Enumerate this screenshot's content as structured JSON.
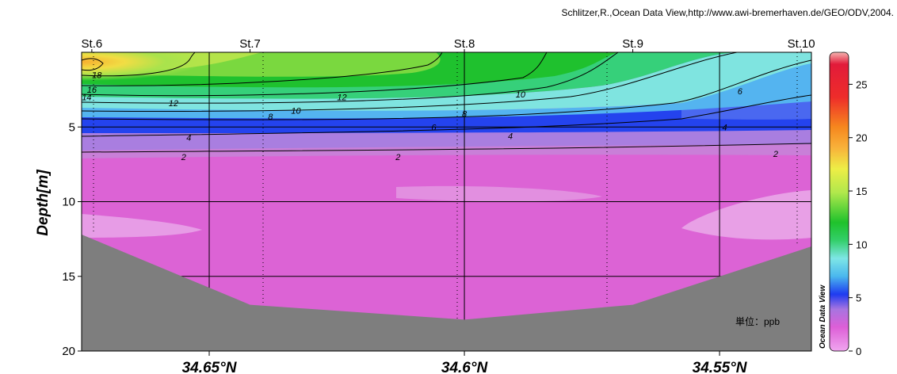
{
  "credit": "Schlitzer,R.,Ocean Data View,http://www.awi-bremerhaven.de/GEO/ODV,2004.",
  "unit_note": "単位：ppb",
  "colorbar_title": "Ocean Data View",
  "chart_data": {
    "type": "heatmap",
    "xlabel": "",
    "ylabel": "Depth[m]",
    "x_range": [
      34.675,
      34.532
    ],
    "ylim": [
      0,
      20
    ],
    "y_inverted": true,
    "grid": true,
    "x_ticks": [
      {
        "value": 34.65,
        "label": "34.65°N"
      },
      {
        "value": 34.6,
        "label": "34.6°N"
      },
      {
        "value": 34.55,
        "label": "34.55°N"
      }
    ],
    "y_ticks": [
      5,
      10,
      15,
      20
    ],
    "stations": [
      {
        "name": "St.6",
        "lat": 34.673
      },
      {
        "name": "St.7",
        "lat": 34.642
      },
      {
        "name": "St.8",
        "lat": 34.6
      },
      {
        "name": "St.9",
        "lat": 34.567
      },
      {
        "name": "St.10",
        "lat": 34.534
      }
    ],
    "bottom_depth": [
      {
        "lat": 34.675,
        "depth": 12.2
      },
      {
        "lat": 34.642,
        "depth": 16.9
      },
      {
        "lat": 34.6,
        "depth": 17.9
      },
      {
        "lat": 34.567,
        "depth": 16.9
      },
      {
        "lat": 34.532,
        "depth": 13.0
      }
    ],
    "contour_labels": [
      {
        "value": "18",
        "lat": 34.672,
        "depth": 1.5
      },
      {
        "value": "16",
        "lat": 34.673,
        "depth": 2.5
      },
      {
        "value": "14",
        "lat": 34.674,
        "depth": 3.0
      },
      {
        "value": "12",
        "lat": 34.657,
        "depth": 3.4
      },
      {
        "value": "12",
        "lat": 34.624,
        "depth": 3.0
      },
      {
        "value": "10",
        "lat": 34.633,
        "depth": 3.9
      },
      {
        "value": "10",
        "lat": 34.589,
        "depth": 2.8
      },
      {
        "value": "8",
        "lat": 34.638,
        "depth": 4.3
      },
      {
        "value": "8",
        "lat": 34.6,
        "depth": 4.1
      },
      {
        "value": "6",
        "lat": 34.606,
        "depth": 5.0
      },
      {
        "value": "6",
        "lat": 34.546,
        "depth": 2.6
      },
      {
        "value": "4",
        "lat": 34.654,
        "depth": 5.7
      },
      {
        "value": "4",
        "lat": 34.591,
        "depth": 5.6
      },
      {
        "value": "4",
        "lat": 34.549,
        "depth": 5.0
      },
      {
        "value": "2",
        "lat": 34.655,
        "depth": 7.0
      },
      {
        "value": "2",
        "lat": 34.613,
        "depth": 7.0
      },
      {
        "value": "2",
        "lat": 34.539,
        "depth": 6.8
      }
    ],
    "colorbar": {
      "range": [
        0,
        28
      ],
      "ticks": [
        0,
        5,
        10,
        15,
        20,
        25
      ],
      "colors": [
        "#f0a6ef",
        "#dd5fd7",
        "#a774e0",
        "#1e3bf0",
        "#4ab7ee",
        "#7ee6e6",
        "#34cf6a",
        "#1ec22c",
        "#b0e84c",
        "#eeee46",
        "#f8b23a",
        "#f6871e",
        "#ee2c2a",
        "#e21b3a",
        "#f5b4b0"
      ]
    }
  }
}
